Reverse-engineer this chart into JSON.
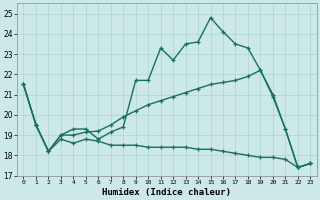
{
  "xlabel": "Humidex (Indice chaleur)",
  "xlim": [
    -0.5,
    23.5
  ],
  "ylim": [
    17,
    25.5
  ],
  "yticks": [
    17,
    18,
    19,
    20,
    21,
    22,
    23,
    24,
    25
  ],
  "xticks": [
    0,
    1,
    2,
    3,
    4,
    5,
    6,
    7,
    8,
    9,
    10,
    11,
    12,
    13,
    14,
    15,
    16,
    17,
    18,
    19,
    20,
    21,
    22,
    23
  ],
  "background_color": "#cce8e8",
  "grid_color": "#aad4d4",
  "line_color": "#1a7060",
  "line_width": 1.0,
  "series": [
    [
      21.5,
      19.5,
      18.2,
      19.0,
      19.3,
      19.3,
      18.8,
      19.15,
      19.4,
      21.7,
      21.7,
      23.3,
      22.7,
      23.5,
      23.6,
      24.8,
      24.1,
      23.5,
      23.3,
      22.2,
      21.0,
      19.3,
      17.4,
      17.6
    ],
    [
      21.5,
      19.5,
      18.2,
      19.0,
      19.0,
      19.15,
      19.2,
      19.5,
      19.9,
      20.2,
      20.5,
      20.7,
      20.9,
      21.1,
      21.3,
      21.5,
      21.6,
      21.7,
      21.9,
      22.2,
      20.9,
      19.3,
      17.4,
      17.6
    ],
    [
      21.5,
      19.5,
      18.2,
      18.8,
      18.6,
      18.8,
      18.7,
      18.5,
      18.5,
      18.5,
      18.4,
      18.4,
      18.4,
      18.4,
      18.3,
      18.3,
      18.2,
      18.1,
      18.0,
      17.9,
      17.9,
      17.8,
      17.4,
      17.6
    ]
  ]
}
